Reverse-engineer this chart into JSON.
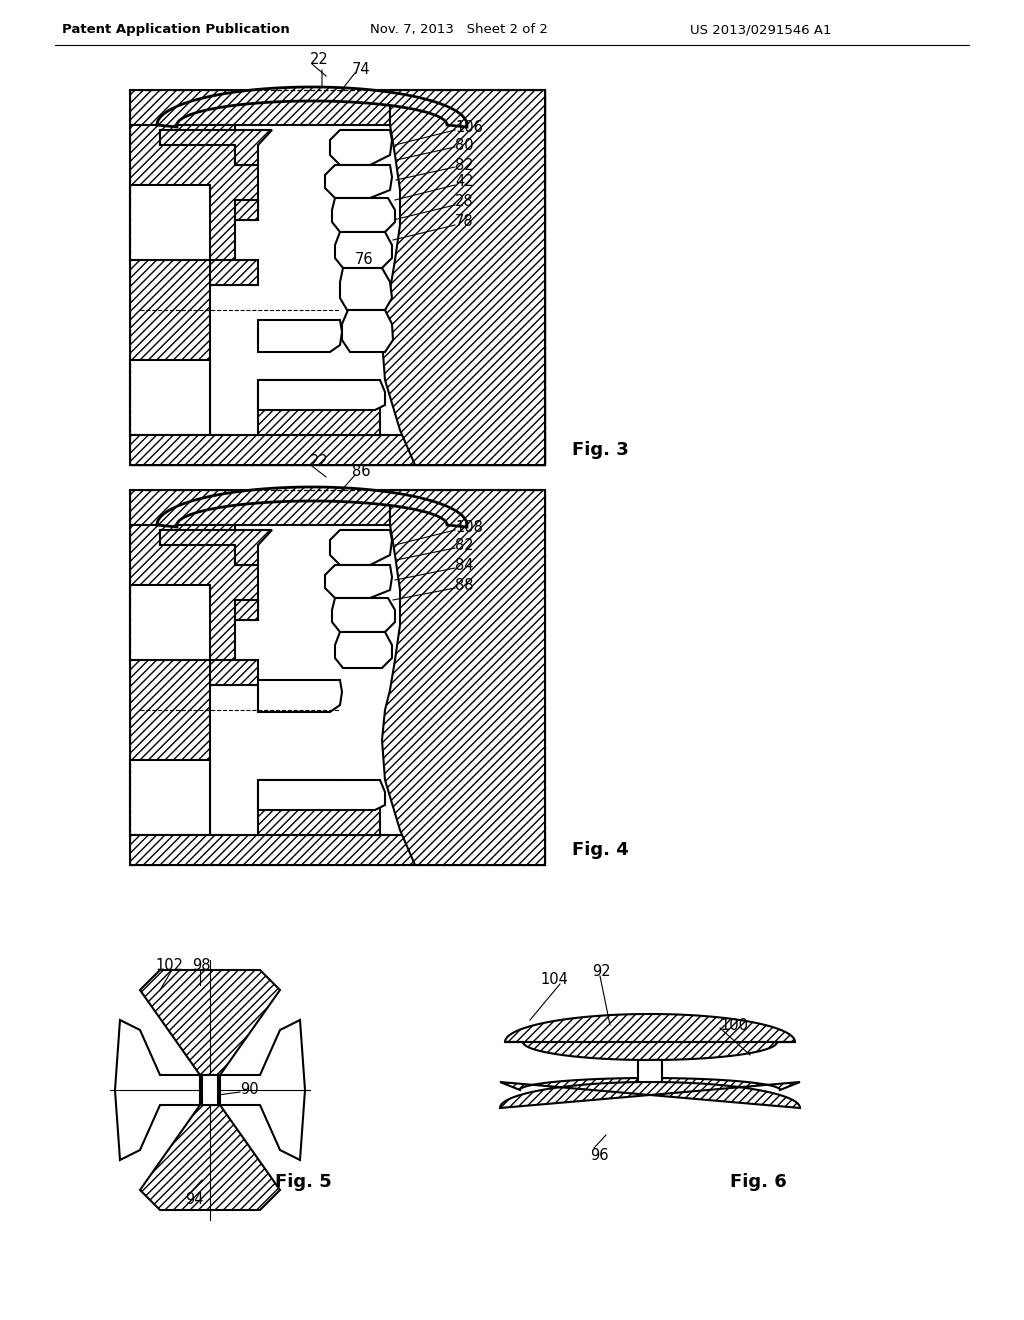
{
  "background_color": "#ffffff",
  "header_left": "Patent Application Publication",
  "header_mid": "Nov. 7, 2013   Sheet 2 of 2",
  "header_right": "US 2013/0291546 A1",
  "fig3_label": "Fig. 3",
  "fig4_label": "Fig. 4",
  "fig5_label": "Fig. 5",
  "fig6_label": "Fig. 6",
  "line_color": "#000000",
  "annotation_fontsize": 10.5,
  "header_fontsize": 9.5,
  "fig_label_fontsize": 13
}
